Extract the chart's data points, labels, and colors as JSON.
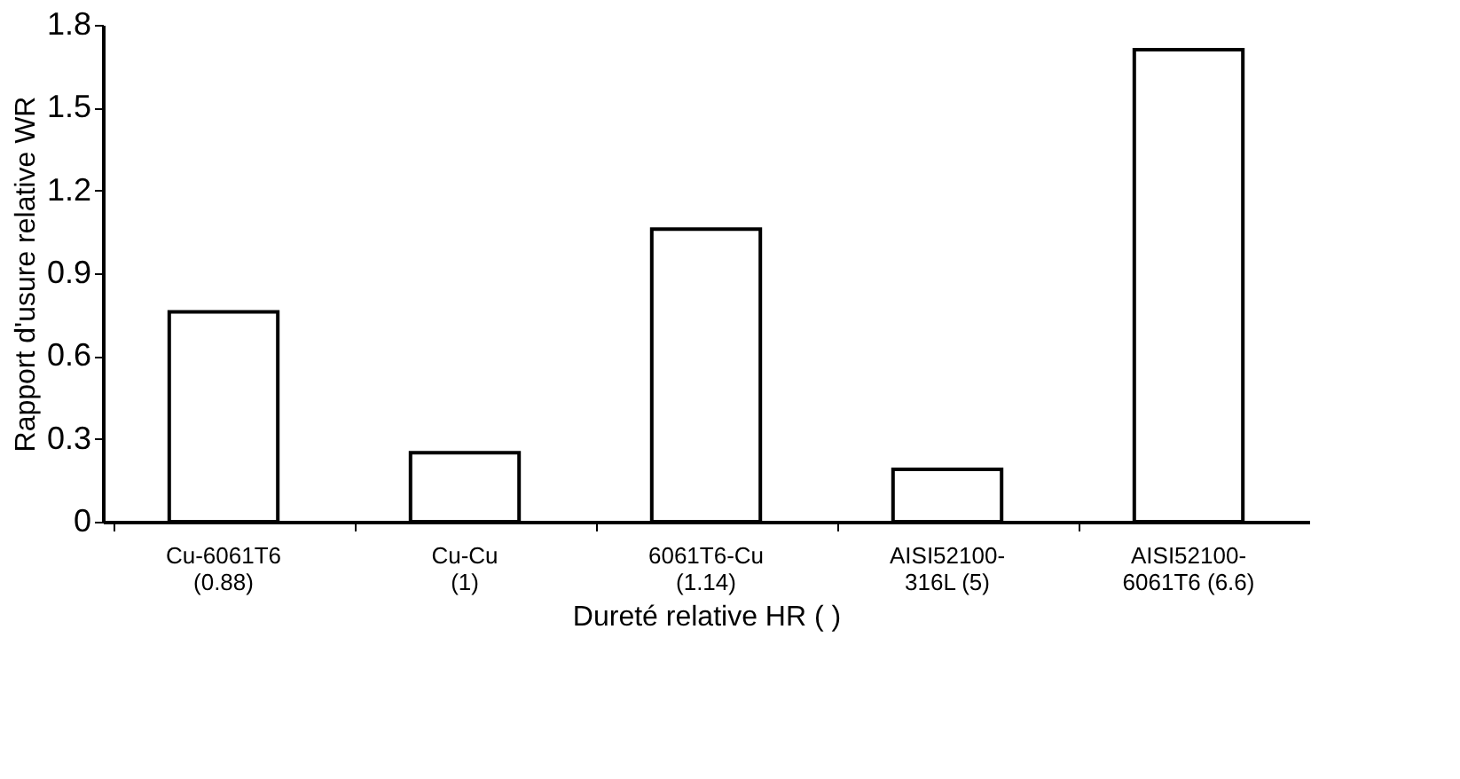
{
  "chart_data": {
    "type": "bar",
    "xlabel": "Dureté relative HR ( )",
    "ylabel": "Rapport d'usure relative WR",
    "categories": [
      "Cu-6061T6\n(0.88)",
      "Cu-Cu\n(1)",
      "6061T6-Cu\n(1.14)",
      "AISI52100-\n316L (5)",
      "AISI52100-\n6061T6 (6.6)"
    ],
    "values": [
      0.76,
      0.25,
      1.06,
      0.19,
      1.71
    ],
    "color": "#ffffff",
    "ylim": [
      0,
      1.8
    ],
    "yticks": [
      0,
      0.3,
      0.6,
      0.9,
      1.2,
      1.5,
      1.8
    ],
    "grid": false
  }
}
